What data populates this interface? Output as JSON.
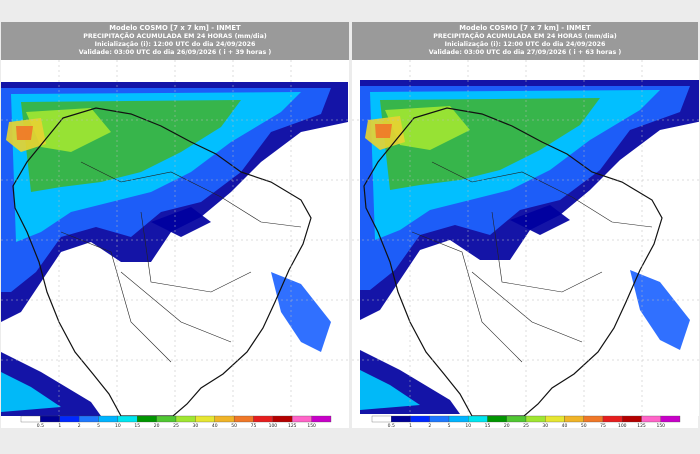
{
  "panels": [
    {
      "title_lines": [
        "Modelo COSMO [7 x 7 km] - INMET",
        "PRECIPITAÇÃO ACUMULADA EM 24 HORAS (mm/dia)",
        "Inicialização (i): 12:00 UTC do dia 24/09/2026",
        "Validade: 03:00 UTC do dia 26/09/2026 ( i + 39 horas )"
      ]
    },
    {
      "title_lines": [
        "Modelo COSMO [7 x 7 km] - INMET",
        "PRECIPITAÇÃO ACUMULADA EM 24 HORAS (mm/dia)",
        "Inicialização (i): 12:00 UTC do dia 24/09/2026",
        "Validade: 03:00 UTC do dia 27/09/2026 ( i + 63 horas )"
      ]
    }
  ],
  "colorbar": {
    "colors": [
      "#ffffff",
      "#000096",
      "#0028ff",
      "#1e78ff",
      "#00b4ff",
      "#00e6f0",
      "#009600",
      "#50c832",
      "#a0e632",
      "#e6e632",
      "#f0b428",
      "#f07828",
      "#e61e1e",
      "#b40000",
      "#ff64c8",
      "#c800c8"
    ],
    "labels": [
      "0.5",
      "1",
      "2",
      "5",
      "10",
      "15",
      "20",
      "25",
      "30",
      "40",
      "50",
      "75",
      "100",
      "125",
      "150"
    ]
  }
}
